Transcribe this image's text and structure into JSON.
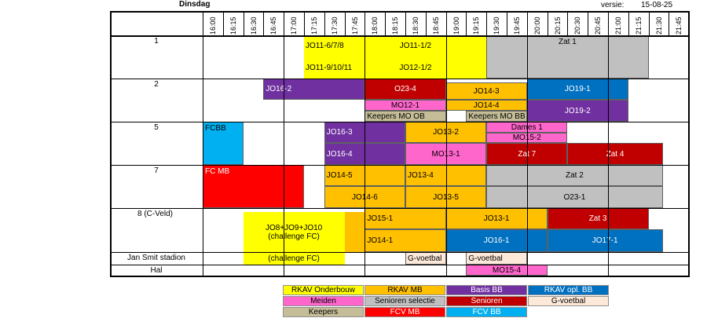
{
  "header": {
    "day": "Dinsdag",
    "version_label": "versie:",
    "version_value": "15-08-25"
  },
  "times": [
    "16:00",
    "16:15",
    "16:30",
    "16:45",
    "17:00",
    "17:15",
    "17:30",
    "17:45",
    "18:00",
    "18:15",
    "18:30",
    "18:45",
    "19:00",
    "19:15",
    "19:30",
    "19:45",
    "20:00",
    "20:15",
    "20:30",
    "20:45",
    "21:00",
    "21:15",
    "21:30",
    "21:45"
  ],
  "fields": [
    "1",
    "2",
    "5",
    "7",
    "8 (C-Veld)",
    "Jan Smit stadion",
    "Hal"
  ],
  "colors": {
    "onderbouw": "#ffff00",
    "mb": "#ffc000",
    "basis_bb": "#7030a0",
    "opl_bb": "#0070c0",
    "meiden": "#ff66cc",
    "senioren_selectie": "#c0c0c0",
    "senioren": "#c00000",
    "gvoetbal": "#fde9d9",
    "keepers": "#c4bd97",
    "fcv_mb": "#ff0000",
    "fcv_bb": "#00b0f0"
  },
  "blocks": [
    {
      "id": "f1-jo11-678",
      "text": "JO11-6/7/8",
      "color": "onderbouw",
      "dark": false
    },
    {
      "id": "f1-jo11-12",
      "text": "JO11-1/2",
      "color": "onderbouw",
      "dark": false
    },
    {
      "id": "f1-jo11-91011",
      "text": "JO11-9/10/11",
      "color": "onderbouw",
      "dark": false
    },
    {
      "id": "f1-jo12-12",
      "text": "JO12-1/2",
      "color": "onderbouw",
      "dark": false
    },
    {
      "id": "f1-y-fill",
      "text": "",
      "color": "onderbouw",
      "dark": false
    },
    {
      "id": "f1-zat1",
      "text": "Zat 1",
      "color": "senioren_selectie",
      "dark": false
    },
    {
      "id": "f2-jo16-2",
      "text": "JO16-2",
      "color": "basis_bb",
      "dark": true
    },
    {
      "id": "f2-o23-4",
      "text": "O23-4",
      "color": "senioren",
      "dark": true
    },
    {
      "id": "f2-jo14-3",
      "text": "JO14-3",
      "color": "mb",
      "dark": false
    },
    {
      "id": "f2-jo19-1",
      "text": "JO19-1",
      "color": "opl_bb",
      "dark": true
    },
    {
      "id": "f2-mo12-1",
      "text": "MO12-1",
      "color": "meiden",
      "dark": false
    },
    {
      "id": "f2-jo14-4",
      "text": "JO14-4",
      "color": "mb",
      "dark": false
    },
    {
      "id": "f2-jo19-2",
      "text": "JO19-2",
      "color": "basis_bb",
      "dark": true
    },
    {
      "id": "f2-keepers-ob",
      "text": "Keepers MO OB",
      "color": "keepers",
      "dark": false
    },
    {
      "id": "f2-keepers-bb",
      "text": "Keepers MO BB",
      "color": "keepers",
      "dark": false
    },
    {
      "id": "f5-fcbb",
      "text": "FCBB",
      "color": "fcv_bb",
      "dark": false
    },
    {
      "id": "f5-jo16-3",
      "text": "JO16-3",
      "color": "basis_bb",
      "dark": true
    },
    {
      "id": "f5-jo13-2",
      "text": "JO13-2",
      "color": "mb",
      "dark": false
    },
    {
      "id": "f5-dames1",
      "text": "Dames 1",
      "color": "meiden",
      "dark": false
    },
    {
      "id": "f5-mo15-2",
      "text": "MO15-2",
      "color": "meiden",
      "dark": false
    },
    {
      "id": "f5-jo16-4",
      "text": "JO16-4",
      "color": "basis_bb",
      "dark": true
    },
    {
      "id": "f5-mo13-1",
      "text": "MO13-1",
      "color": "meiden",
      "dark": false
    },
    {
      "id": "f5-zat7",
      "text": "Zat 7",
      "color": "senioren",
      "dark": true
    },
    {
      "id": "f5-zat4",
      "text": "Zat 4",
      "color": "senioren",
      "dark": true
    },
    {
      "id": "f7-fcmb",
      "text": "FC MB",
      "color": "fcv_mb",
      "dark": true
    },
    {
      "id": "f7-jo14-5",
      "text": "JO14-5",
      "color": "mb",
      "dark": false
    },
    {
      "id": "f7-jo13-4",
      "text": "JO13-4",
      "color": "mb",
      "dark": false
    },
    {
      "id": "f7-zat2",
      "text": "Zat 2",
      "color": "senioren_selectie",
      "dark": false
    },
    {
      "id": "f7-jo14-6",
      "text": "JO14-6",
      "color": "mb",
      "dark": false
    },
    {
      "id": "f7-jo13-5",
      "text": "JO13-5",
      "color": "mb",
      "dark": false
    },
    {
      "id": "f7-o23-1",
      "text": "O23-1",
      "color": "senioren_selectie",
      "dark": false
    },
    {
      "id": "f8-mb-top",
      "text": "",
      "color": "mb",
      "dark": false
    },
    {
      "id": "f8-challenge",
      "text": "JO8+JO9+JO10",
      "text2": "(challenge FC)",
      "color": "onderbouw",
      "dark": false
    },
    {
      "id": "f8-jo15-1",
      "text": "JO15-1",
      "color": "mb",
      "dark": false
    },
    {
      "id": "f8-jo13-1",
      "text": "JO13-1",
      "color": "mb",
      "dark": false
    },
    {
      "id": "f8-zat3",
      "text": "Zat 3",
      "color": "senioren",
      "dark": true
    },
    {
      "id": "f8-jo14-1",
      "text": "JO14-1",
      "color": "mb",
      "dark": false
    },
    {
      "id": "f8-jo16-1",
      "text": "JO16-1",
      "color": "opl_bb",
      "dark": true
    },
    {
      "id": "f8-jo17-1",
      "text": "JO17-1",
      "color": "opl_bb",
      "dark": true
    },
    {
      "id": "js-challenge",
      "text": "(challenge FC)",
      "color": "onderbouw",
      "dark": false
    },
    {
      "id": "js-gvoetbal1",
      "text": "G-voetbal",
      "color": "gvoetbal",
      "dark": false
    },
    {
      "id": "js-gvoetbal2",
      "text": "G-voetbal",
      "color": "gvoetbal",
      "dark": false
    },
    {
      "id": "hal-mo15-4",
      "text": "MO15-4",
      "color": "meiden",
      "dark": false
    }
  ],
  "legend": [
    {
      "id": "lg-onderbouw",
      "text": "RKAV Onderbouw",
      "color": "onderbouw",
      "dark": false
    },
    {
      "id": "lg-mb",
      "text": "RKAV MB",
      "color": "mb",
      "dark": false
    },
    {
      "id": "lg-basisbb",
      "text": "Basis BB",
      "color": "basis_bb",
      "dark": true
    },
    {
      "id": "lg-oplbb",
      "text": "RKAV opl. BB",
      "color": "opl_bb",
      "dark": true
    },
    {
      "id": "lg-meiden",
      "text": "Meiden",
      "color": "meiden",
      "dark": false
    },
    {
      "id": "lg-senselectie",
      "text": "Senioren selectie",
      "color": "senioren_selectie",
      "dark": false
    },
    {
      "id": "lg-senioren",
      "text": "Senioren",
      "color": "senioren",
      "dark": true
    },
    {
      "id": "lg-gvoetbal",
      "text": "G-voetbal",
      "color": "gvoetbal",
      "dark": false
    },
    {
      "id": "lg-keepers",
      "text": "Keepers",
      "color": "keepers",
      "dark": false
    },
    {
      "id": "lg-fcvmb",
      "text": "FCV MB",
      "color": "fcv_mb",
      "dark": true
    },
    {
      "id": "lg-fcvbb",
      "text": "FCV BB",
      "color": "fcv_bb",
      "dark": true
    }
  ]
}
